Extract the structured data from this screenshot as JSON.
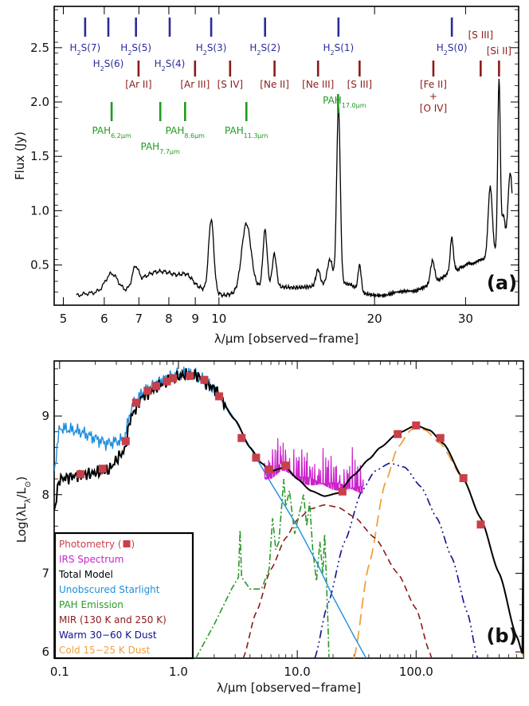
{
  "colors": {
    "h2": "#2b2b9a",
    "ion": "#8b1a1a",
    "pah": "#1f9a1f",
    "photometry": "#c8404a",
    "irs": "#cc22cc",
    "total": "#000000",
    "stars": "#1f8fdc",
    "pah_em": "#2a9a2a",
    "mir": "#8b1a1a",
    "warm": "#101090",
    "cold": "#f0a040"
  },
  "chart_data": [
    {
      "type": "line",
      "panel_label": "(a)",
      "xlabel": "λ/μm [observed−frame]",
      "ylabel": "Flux (Jy)",
      "xscale": "log",
      "xlim": [
        4.8,
        38
      ],
      "ylim": [
        0.13,
        2.88
      ],
      "xticks": [
        5,
        6,
        7,
        8,
        9,
        10,
        20,
        30
      ],
      "xtick_labels": [
        "5",
        "6",
        "7",
        "8",
        "9",
        "10",
        "20",
        "30"
      ],
      "yticks": [
        0.5,
        1.0,
        1.5,
        2.0,
        2.5
      ],
      "ytick_labels": [
        "0.5",
        "1.0",
        "1.5",
        "2.0",
        "2.5"
      ],
      "continuum": [
        [
          5.3,
          0.22
        ],
        [
          5.6,
          0.24
        ],
        [
          6.0,
          0.25
        ],
        [
          6.6,
          0.26
        ],
        [
          7.2,
          0.36
        ],
        [
          7.8,
          0.41
        ],
        [
          8.4,
          0.36
        ],
        [
          9.0,
          0.3
        ],
        [
          9.6,
          0.26
        ],
        [
          10.2,
          0.22
        ],
        [
          11.0,
          0.25
        ],
        [
          12.0,
          0.3
        ],
        [
          13.0,
          0.3
        ],
        [
          14.0,
          0.29
        ],
        [
          15.0,
          0.3
        ],
        [
          16.0,
          0.32
        ],
        [
          17.0,
          0.34
        ],
        [
          18.0,
          0.32
        ],
        [
          19.0,
          0.24
        ],
        [
          20.0,
          0.22
        ],
        [
          21.0,
          0.22
        ],
        [
          22.0,
          0.25
        ],
        [
          23.0,
          0.26
        ],
        [
          24.0,
          0.26
        ],
        [
          25.0,
          0.3
        ],
        [
          26.0,
          0.33
        ],
        [
          27.0,
          0.38
        ],
        [
          28.0,
          0.44
        ],
        [
          29.0,
          0.46
        ],
        [
          30.0,
          0.5
        ],
        [
          31.0,
          0.52
        ],
        [
          32.0,
          0.55
        ],
        [
          33.0,
          0.56
        ],
        [
          34.0,
          0.6
        ],
        [
          35.0,
          0.65
        ],
        [
          36.0,
          0.72
        ]
      ],
      "features": [
        {
          "x": 6.2,
          "peak": 0.42,
          "w": 0.012
        },
        {
          "x": 6.9,
          "peak": 0.48,
          "w": 0.006
        },
        {
          "x": 7.7,
          "peak": 0.44,
          "w": 0.022
        },
        {
          "x": 8.6,
          "peak": 0.41,
          "w": 0.012
        },
        {
          "x": 9.66,
          "peak": 0.92,
          "w": 0.005
        },
        {
          "x": 11.3,
          "peak": 0.88,
          "w": 0.009
        },
        {
          "x": 12.28,
          "peak": 0.82,
          "w": 0.004
        },
        {
          "x": 12.8,
          "peak": 0.6,
          "w": 0.004
        },
        {
          "x": 15.55,
          "peak": 0.46,
          "w": 0.004
        },
        {
          "x": 16.4,
          "peak": 0.55,
          "w": 0.005
        },
        {
          "x": 17.03,
          "peak": 1.96,
          "w": 0.0035
        },
        {
          "x": 18.71,
          "peak": 0.5,
          "w": 0.003
        },
        {
          "x": 25.9,
          "peak": 0.54,
          "w": 0.004
        },
        {
          "x": 28.22,
          "peak": 0.75,
          "w": 0.003
        },
        {
          "x": 33.48,
          "peak": 1.22,
          "w": 0.004
        },
        {
          "x": 34.82,
          "peak": 2.2,
          "w": 0.0025
        },
        {
          "x": 35.5,
          "peak": 0.95,
          "w": 0.003
        },
        {
          "x": 36.6,
          "peak": 1.35,
          "w": 0.004
        }
      ],
      "annotations": {
        "h2": [
          {
            "x": 5.51,
            "label": "H",
            "sub": "2",
            "rest": "S(7)",
            "row": 1
          },
          {
            "x": 6.11,
            "label": "H",
            "sub": "2",
            "rest": "S(6)",
            "row": 2
          },
          {
            "x": 6.91,
            "label": "H",
            "sub": "2",
            "rest": "S(5)",
            "row": 1
          },
          {
            "x": 8.03,
            "label": "H",
            "sub": "2",
            "rest": "S(4)",
            "row": 2
          },
          {
            "x": 9.66,
            "label": "H",
            "sub": "2",
            "rest": "S(3)",
            "row": 1
          },
          {
            "x": 12.28,
            "label": "H",
            "sub": "2",
            "rest": "S(2)",
            "row": 1
          },
          {
            "x": 17.03,
            "label": "H",
            "sub": "2",
            "rest": "S(1)",
            "row": 1
          },
          {
            "x": 28.22,
            "label": "H",
            "sub": "2",
            "rest": "S(0)",
            "row": 1
          }
        ],
        "ion": [
          {
            "x": 6.99,
            "text": "[Ar II]",
            "row": 1
          },
          {
            "x": 8.99,
            "text": "[Ar III]",
            "row": 1
          },
          {
            "x": 10.51,
            "text": "[S IV]",
            "row": 1
          },
          {
            "x": 12.81,
            "text": "[Ne II]",
            "row": 1
          },
          {
            "x": 15.55,
            "text": "[Ne III]",
            "row": 1
          },
          {
            "x": 18.71,
            "text": "[S III]",
            "row": 1
          },
          {
            "x": 25.99,
            "text": "[Fe II]",
            "line2": "+",
            "line3": "[O IV]",
            "row": 1
          },
          {
            "x": 33.48,
            "text": "[S III]",
            "row": 0
          },
          {
            "x": 34.82,
            "text": "[Si II]",
            "row": 0.5
          }
        ],
        "pah": [
          {
            "x": 6.2,
            "label": "PAH",
            "sub": "6.2μm",
            "row": 1
          },
          {
            "x": 7.7,
            "label": "PAH",
            "sub": "7.7μm",
            "row": 2
          },
          {
            "x": 8.6,
            "label": "PAH",
            "sub": "8.6μm",
            "row": 1
          },
          {
            "x": 11.3,
            "label": "PAH",
            "sub": "11.3μm",
            "row": 1
          },
          {
            "x": 17.0,
            "label": "PAH",
            "sub": "17.0μm",
            "row": 0.5
          }
        ]
      }
    },
    {
      "type": "line",
      "panel_label": "(b)",
      "xlabel": "λ/μm [observed−frame]",
      "ylabel": "Log(λL",
      "ylabel_sub": "λ",
      "ylabel_mid": "/L",
      "ylabel_sub2": "⊙",
      "ylabel_end": ")",
      "xscale": "log",
      "xlim": [
        0.09,
        800
      ],
      "ylim": [
        5.92,
        9.7
      ],
      "xticks": [
        0.1,
        1.0,
        10.0,
        100.0
      ],
      "xtick_labels": [
        "0.1",
        "1.0",
        "10.0",
        "100.0"
      ],
      "yticks": [
        6,
        7,
        8,
        9
      ],
      "ytick_labels": [
        "6",
        "7",
        "8",
        "9"
      ],
      "legend": {
        "placement": "bottom-left",
        "entries": [
          {
            "text": "Photometry (",
            "suffix": ")",
            "marker": true,
            "color": "#c8404a"
          },
          {
            "text": "IRS Spectrum",
            "color": "#cc22cc"
          },
          {
            "text": "Total Model",
            "color": "#000000"
          },
          {
            "text": "Unobscured Starlight",
            "color": "#1f8fdc"
          },
          {
            "text": "PAH Emission",
            "color": "#2a9a2a"
          },
          {
            "text": "MIR (130 K and 250 K)",
            "color": "#8b1a1a"
          },
          {
            "text": "Warm 30−60 K Dust",
            "color": "#101090"
          },
          {
            "text": "Cold 15−25 K Dust",
            "color": "#f0a040"
          }
        ]
      },
      "series": [
        {
          "name": "Photometry",
          "style": "markers",
          "points": [
            [
              0.15,
              8.26
            ],
            [
              0.23,
              8.33
            ],
            [
              0.36,
              8.68
            ],
            [
              0.44,
              9.17
            ],
            [
              0.55,
              9.32
            ],
            [
              0.65,
              9.38
            ],
            [
              0.8,
              9.44
            ],
            [
              0.9,
              9.48
            ],
            [
              1.25,
              9.51
            ],
            [
              1.65,
              9.46
            ],
            [
              2.2,
              9.25
            ],
            [
              3.4,
              8.72
            ],
            [
              4.5,
              8.47
            ],
            [
              5.8,
              8.32
            ],
            [
              8.0,
              8.37
            ],
            [
              24,
              8.04
            ],
            [
              70,
              8.77
            ],
            [
              100,
              8.88
            ],
            [
              160,
              8.72
            ],
            [
              250,
              8.21
            ],
            [
              350,
              7.62
            ]
          ]
        },
        {
          "name": "IRS Spectrum",
          "style": "irs"
        },
        {
          "name": "Total Model",
          "style": "total",
          "points": [
            [
              0.09,
              7.8
            ],
            [
              0.1,
              8.2
            ],
            [
              0.15,
              8.25
            ],
            [
              0.25,
              8.3
            ],
            [
              0.35,
              8.55
            ],
            [
              0.4,
              9.0
            ],
            [
              0.5,
              9.25
            ],
            [
              0.7,
              9.4
            ],
            [
              0.9,
              9.47
            ],
            [
              1.1,
              9.52
            ],
            [
              1.4,
              9.52
            ],
            [
              2.0,
              9.35
            ],
            [
              3.0,
              8.95
            ],
            [
              4.0,
              8.6
            ],
            [
              5.0,
              8.4
            ],
            [
              6.0,
              8.3
            ],
            [
              8.0,
              8.35
            ],
            [
              10,
              8.2
            ],
            [
              13,
              8.05
            ],
            [
              17,
              7.98
            ],
            [
              22,
              8.02
            ],
            [
              30,
              8.25
            ],
            [
              40,
              8.45
            ],
            [
              50,
              8.6
            ],
            [
              70,
              8.78
            ],
            [
              100,
              8.88
            ],
            [
              130,
              8.82
            ],
            [
              170,
              8.65
            ],
            [
              250,
              8.2
            ],
            [
              350,
              7.7
            ],
            [
              500,
              7.0
            ],
            [
              700,
              6.2
            ],
            [
              800,
              5.95
            ]
          ]
        },
        {
          "name": "Unobscured Starlight",
          "style": "stars",
          "points": [
            [
              0.09,
              8.3
            ],
            [
              0.1,
              8.85
            ],
            [
              0.15,
              8.8
            ],
            [
              0.25,
              8.65
            ],
            [
              0.35,
              8.7
            ],
            [
              0.4,
              9.1
            ],
            [
              0.5,
              9.3
            ],
            [
              0.7,
              9.45
            ],
            [
              0.9,
              9.52
            ],
            [
              1.1,
              9.54
            ],
            [
              1.4,
              9.52
            ],
            [
              2.0,
              9.35
            ],
            [
              3.0,
              8.95
            ],
            [
              4.0,
              8.6
            ],
            [
              6.0,
              8.15
            ],
            [
              10,
              7.6
            ],
            [
              15,
              7.1
            ],
            [
              20,
              6.7
            ],
            [
              30,
              6.2
            ],
            [
              38,
              5.92
            ]
          ]
        },
        {
          "name": "PAH Emission",
          "style": "pah",
          "points": [
            [
              1.4,
              5.92
            ],
            [
              2.0,
              6.35
            ],
            [
              2.8,
              6.8
            ],
            [
              3.2,
              6.95
            ],
            [
              3.3,
              7.55
            ],
            [
              3.4,
              6.95
            ],
            [
              4.0,
              6.8
            ],
            [
              5.0,
              6.8
            ],
            [
              5.8,
              7.05
            ],
            [
              6.2,
              7.7
            ],
            [
              6.6,
              7.3
            ],
            [
              7.0,
              7.4
            ],
            [
              7.7,
              8.2
            ],
            [
              8.0,
              7.85
            ],
            [
              8.6,
              8.05
            ],
            [
              9.5,
              7.5
            ],
            [
              11.3,
              8.0
            ],
            [
              12.0,
              7.6
            ],
            [
              12.7,
              7.9
            ],
            [
              13.5,
              7.3
            ],
            [
              14.5,
              6.9
            ],
            [
              15.5,
              7.4
            ],
            [
              16.4,
              7.0
            ],
            [
              17.0,
              7.5
            ],
            [
              18.0,
              6.5
            ],
            [
              18.5,
              5.92
            ]
          ]
        },
        {
          "name": "MIR",
          "style": "mir",
          "points": [
            [
              3.5,
              5.92
            ],
            [
              4.5,
              6.5
            ],
            [
              6.0,
              7.05
            ],
            [
              8.0,
              7.45
            ],
            [
              10,
              7.68
            ],
            [
              13,
              7.82
            ],
            [
              17,
              7.87
            ],
            [
              22,
              7.84
            ],
            [
              30,
              7.72
            ],
            [
              45,
              7.45
            ],
            [
              70,
              7.0
            ],
            [
              100,
              6.55
            ],
            [
              130,
              6.0
            ],
            [
              135,
              5.92
            ]
          ]
        },
        {
          "name": "Warm Dust",
          "style": "warm",
          "points": [
            [
              14,
              5.92
            ],
            [
              18,
              6.6
            ],
            [
              25,
              7.4
            ],
            [
              35,
              8.05
            ],
            [
              45,
              8.3
            ],
            [
              60,
              8.4
            ],
            [
              80,
              8.35
            ],
            [
              110,
              8.1
            ],
            [
              150,
              7.7
            ],
            [
              200,
              7.2
            ],
            [
              270,
              6.5
            ],
            [
              330,
              5.92
            ]
          ]
        },
        {
          "name": "Cold Dust",
          "style": "cold",
          "points": [
            [
              30,
              5.92
            ],
            [
              40,
              7.1
            ],
            [
              55,
              8.15
            ],
            [
              70,
              8.6
            ],
            [
              90,
              8.82
            ],
            [
              100,
              8.86
            ],
            [
              120,
              8.82
            ],
            [
              160,
              8.65
            ],
            [
              250,
              8.2
            ],
            [
              350,
              7.7
            ],
            [
              500,
              7.0
            ],
            [
              700,
              6.2
            ],
            [
              800,
              5.95
            ]
          ]
        }
      ]
    }
  ]
}
